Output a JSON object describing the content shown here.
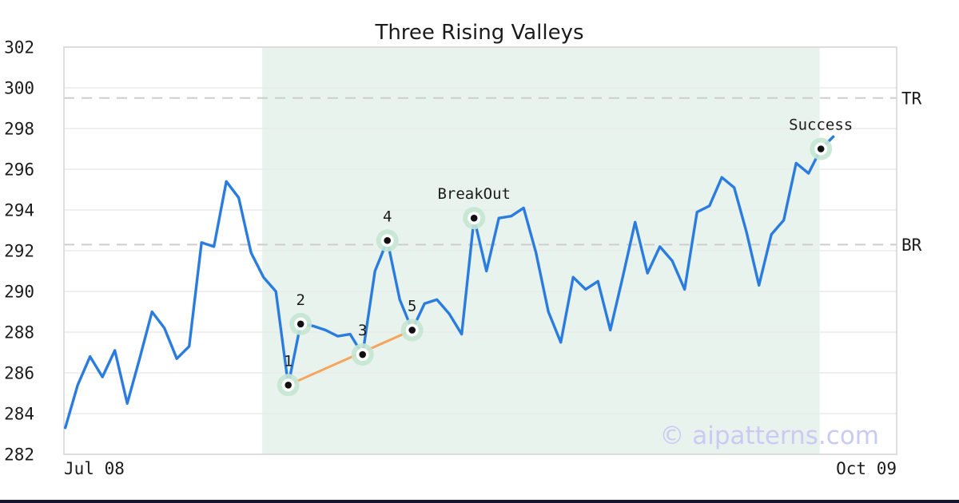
{
  "title": "Three Rising Valleys",
  "watermark": "© aipatterns.com",
  "colors": {
    "price_line": "#2b7cdf",
    "trendline": "#f7a45c",
    "pattern_zone": "#e9f3ee",
    "marker_halo": "#c4e5d2",
    "marker_ring": "#ffffff",
    "marker_dot": "#111111",
    "dashed_level": "#cdcdcd",
    "grid": "#e7e7e7",
    "plot_border": "#d6d6d6",
    "text": "#1b1b1b",
    "watermark_color": "#c9cbf3",
    "bottom_bar": "#161635"
  },
  "chart_data": {
    "type": "line",
    "title": "Three Rising Valleys",
    "xlabel": "",
    "ylabel": "",
    "ylim": [
      282,
      302
    ],
    "grid": true,
    "y_ticks": [
      282,
      284,
      286,
      288,
      290,
      292,
      294,
      296,
      298,
      300,
      302
    ],
    "x_tick_labels": [
      "Jul 08",
      "Oct 09"
    ],
    "values": [
      283.3,
      285.4,
      286.8,
      285.8,
      287.1,
      284.5,
      286.7,
      289.0,
      288.2,
      286.7,
      287.3,
      292.4,
      292.2,
      295.4,
      294.6,
      291.9,
      290.7,
      290.0,
      285.4,
      288.4,
      288.3,
      288.1,
      287.8,
      287.9,
      286.9,
      291.0,
      292.5,
      289.6,
      288.1,
      289.4,
      289.6,
      288.9,
      287.9,
      293.6,
      291.0,
      293.6,
      293.7,
      294.1,
      291.9,
      289.0,
      287.5,
      290.7,
      290.1,
      290.5,
      288.1,
      290.7,
      293.4,
      290.9,
      292.2,
      291.5,
      290.1,
      293.9,
      294.2,
      295.6,
      295.1,
      292.9,
      290.3,
      292.8,
      293.5,
      296.3,
      295.8,
      297.0,
      297.6
    ],
    "levels": [
      {
        "label": "TR",
        "value": 299.5
      },
      {
        "label": "BR",
        "value": 292.3
      }
    ],
    "pattern_zone": {
      "start_index": 15.9,
      "end_index": 60.9
    },
    "trendline": {
      "from_index": 18,
      "to_index": 28
    },
    "annotations": [
      {
        "label": "1",
        "index": 18,
        "value": 285.4
      },
      {
        "label": "2",
        "index": 19,
        "value": 288.4
      },
      {
        "label": "3",
        "index": 24,
        "value": 286.9
      },
      {
        "label": "4",
        "index": 26,
        "value": 292.5
      },
      {
        "label": "5",
        "index": 28,
        "value": 288.1
      },
      {
        "label": "BreakOut",
        "index": 33,
        "value": 293.6
      },
      {
        "label": "Success",
        "index": 61,
        "value": 297.0
      }
    ]
  }
}
